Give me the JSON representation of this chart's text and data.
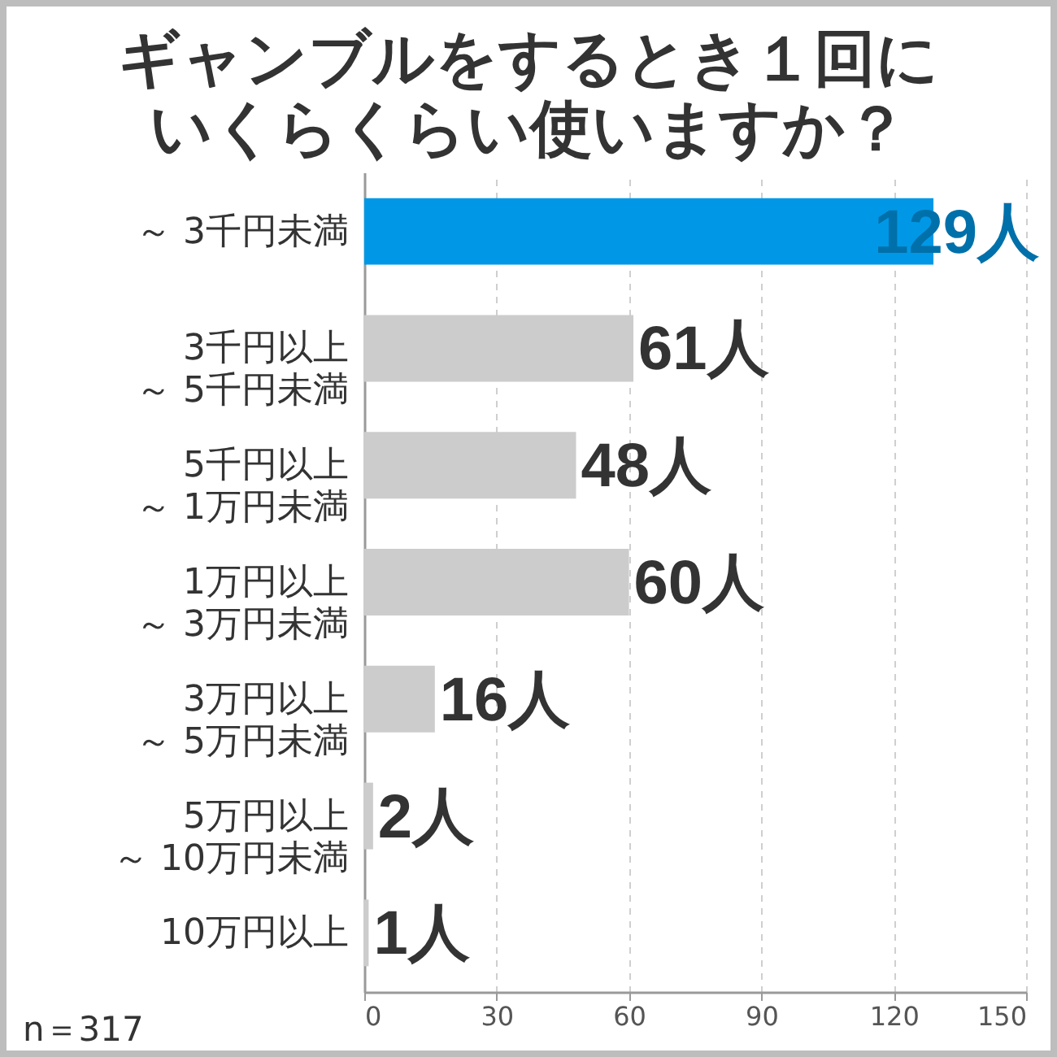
{
  "chart_data": {
    "type": "bar",
    "orientation": "horizontal",
    "title": "ギャンブルをするとき１回にいくらくらい使いますか？",
    "categories": [
      "～ 3千円未満",
      "3千円以上～ 5千円未満",
      "5千円以上～ 1万円未満",
      "1万円以上～ 3万円未満",
      "3万円以上～ 5万円未満",
      "5万円以上～ 10万円未満",
      "10万円以上"
    ],
    "values": [
      129,
      61,
      48,
      60,
      16,
      2,
      1
    ],
    "colors": [
      "#0098e6",
      "#cccccc",
      "#cccccc",
      "#cccccc",
      "#cccccc",
      "#cccccc",
      "#cccccc"
    ],
    "value_labels": [
      "129人",
      "61人",
      "48人",
      "60人",
      "16人",
      "2人",
      "1人"
    ],
    "xlim": [
      0,
      150
    ],
    "xticks": [
      0,
      30,
      60,
      90,
      120,
      150
    ],
    "grid": "x",
    "annotations": [
      "n＝317"
    ]
  }
}
